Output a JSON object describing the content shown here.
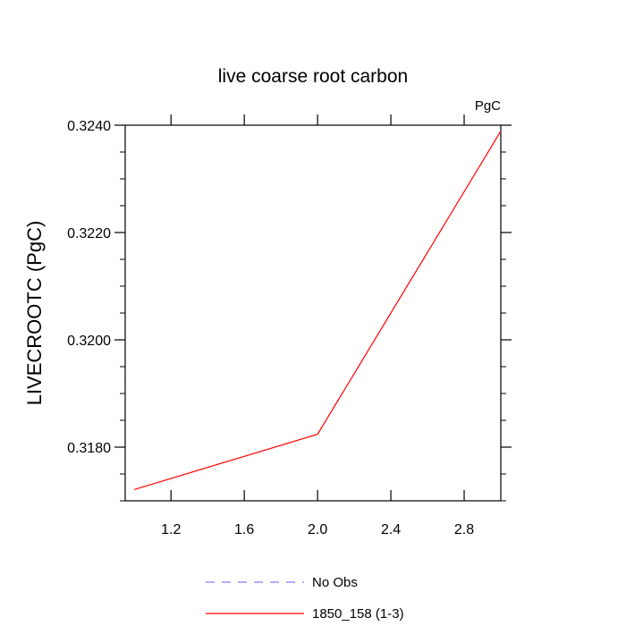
{
  "chart_data": {
    "type": "line",
    "title": "live coarse root carbon",
    "units_label": "PgC",
    "xlabel": "",
    "ylabel": "LIVECROOTC  (PgC)",
    "xlim": [
      0.95,
      3.0
    ],
    "ylim": [
      0.317,
      0.324
    ],
    "x_ticks": [
      1.2,
      1.6,
      2.0,
      2.4,
      2.8
    ],
    "x_tick_labels": [
      "1.2",
      "1.6",
      "2.0",
      "2.4",
      "2.8"
    ],
    "y_ticks": [
      0.318,
      0.32,
      0.322,
      0.324
    ],
    "y_tick_labels": [
      "0.3180",
      "0.3200",
      "0.3220",
      "0.3240"
    ],
    "grid": false,
    "legend_position": "bottom",
    "series": [
      {
        "name": "No Obs",
        "color": "#8080ff",
        "dash": "dashed",
        "x": [],
        "y": []
      },
      {
        "name": "1850_158 (1-3)",
        "color": "#ff0000",
        "dash": "solid",
        "x": [
          1.0,
          2.0,
          3.0
        ],
        "y": [
          0.31721,
          0.31824,
          0.32389
        ]
      }
    ]
  }
}
